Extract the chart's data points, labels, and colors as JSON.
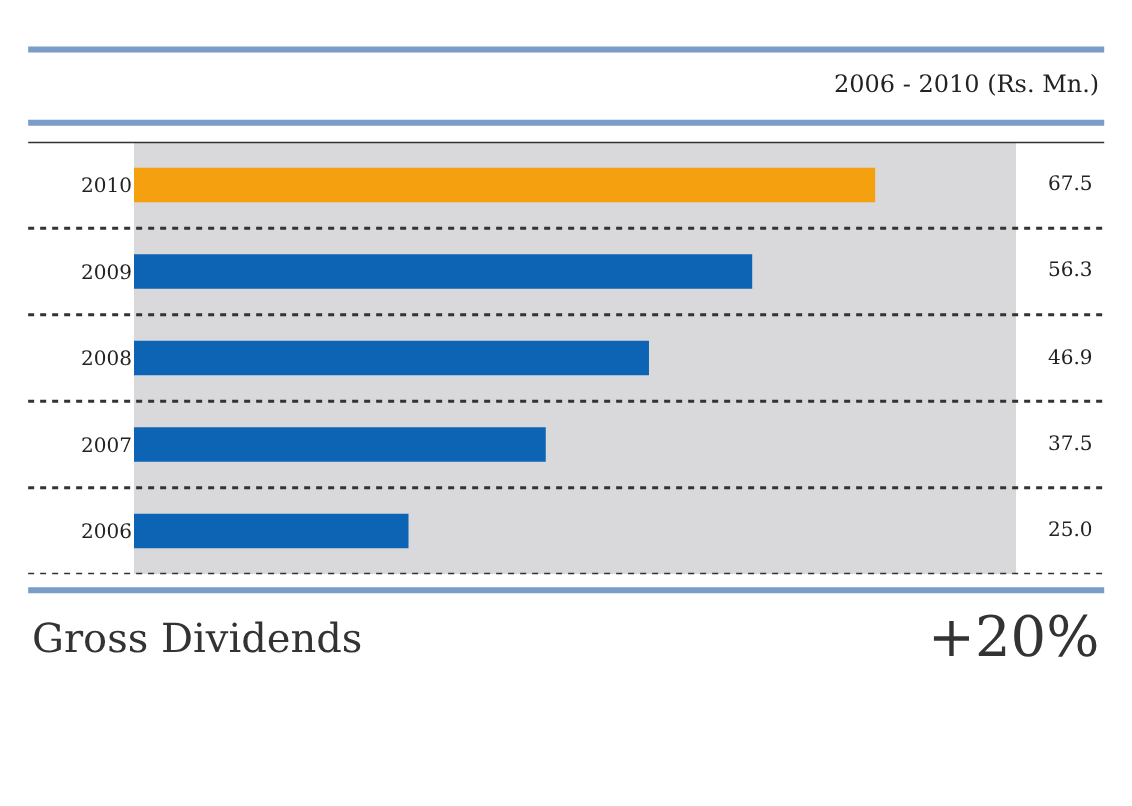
{
  "chart_data": {
    "type": "bar",
    "orientation": "horizontal",
    "title": "2006 - 2010 (Rs. Mn.)",
    "categories": [
      "2010",
      "2009",
      "2008",
      "2007",
      "2006"
    ],
    "values": [
      67.5,
      56.3,
      46.9,
      37.5,
      25.0
    ],
    "value_labels": [
      "67.5",
      "56.3",
      "46.9",
      "37.5",
      "25.0"
    ],
    "colors": [
      "#f5a00f",
      "#0e64b4",
      "#0e64b4",
      "#0e64b4",
      "#0e64b4"
    ],
    "annotations": [
      "Gross Dividends",
      "+20%"
    ],
    "grid": false,
    "legend": false
  }
}
